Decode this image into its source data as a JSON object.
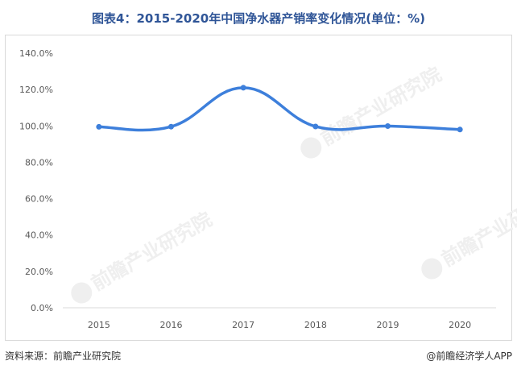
{
  "title": "图表4：2015-2020年中国净水器产销率变化情况(单位：%)",
  "source": "资料来源：前瞻产业研究院",
  "brand": "@前瞻经济学人APP",
  "watermark": "前瞻产业研究院",
  "chart_data": {
    "type": "line",
    "categories": [
      "2015",
      "2016",
      "2017",
      "2018",
      "2019",
      "2020"
    ],
    "series": [
      {
        "values": [
          99.5,
          99.6,
          121.0,
          99.7,
          99.9,
          98.0
        ],
        "color": "#3d7fdb"
      }
    ],
    "ylim": [
      0,
      140
    ],
    "yticks": [
      "0.0%",
      "20.0%",
      "40.0%",
      "60.0%",
      "80.0%",
      "100.0%",
      "120.0%",
      "140.0%"
    ],
    "grid": false,
    "smooth": true
  }
}
